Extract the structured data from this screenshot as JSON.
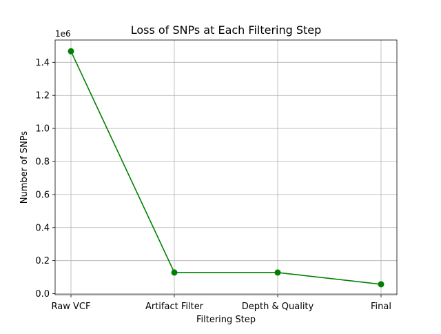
{
  "chart_data": {
    "type": "line",
    "title": "Loss of SNPs at Each Filtering Step",
    "xlabel": "Filtering Step",
    "ylabel": "Number of SNPs",
    "y_offset_label": "1e6",
    "categories": [
      "Raw VCF",
      "Artifact Filter",
      "Depth & Quality",
      "Final"
    ],
    "series": [
      {
        "values": [
          1467000,
          128000,
          128000,
          57000
        ],
        "color": "#008000",
        "marker": "circle"
      }
    ],
    "ylim": [
      -6000,
      1535000
    ],
    "y_ticks": [
      0,
      200000,
      400000,
      600000,
      800000,
      1000000,
      1200000,
      1400000
    ],
    "y_tick_labels": [
      "0.0",
      "0.2",
      "0.4",
      "0.6",
      "0.8",
      "1.0",
      "1.2",
      "1.4"
    ],
    "grid": true,
    "legend": "none"
  }
}
